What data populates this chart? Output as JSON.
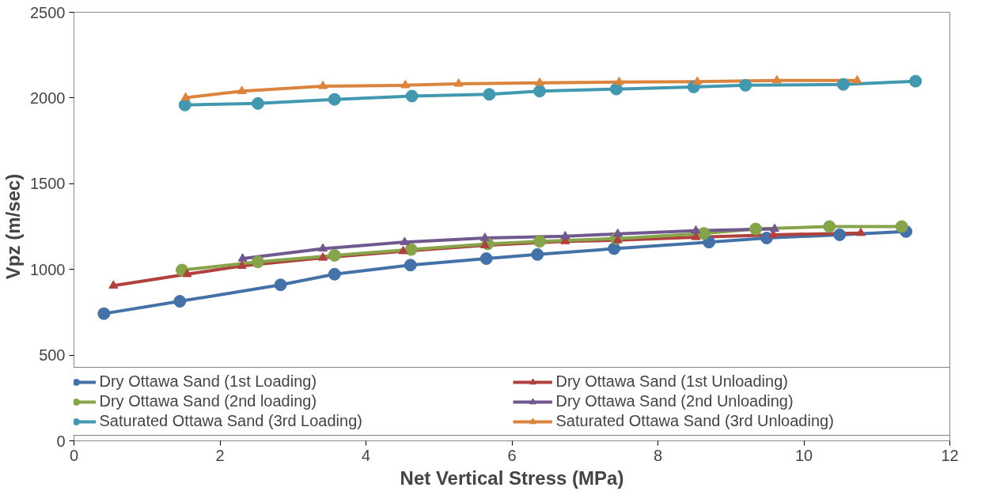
{
  "chart_data": {
    "type": "line",
    "xlabel": "Net Vertical Stress (MPa)",
    "ylabel": "Vpz (m/sec)",
    "xlim": [
      0,
      12
    ],
    "xticks": [
      0,
      2,
      4,
      6,
      8,
      10,
      12
    ],
    "ylim": [
      0,
      2500
    ],
    "yticks": [
      0,
      500,
      1000,
      1500,
      2000,
      2500
    ],
    "grid": false,
    "legend": "bottom",
    "line_style": "solid",
    "series": [
      {
        "name": "Dry Ottawa Sand (1st Loading)",
        "color": "#4472a8",
        "marker": "circle",
        "x": [
          0.41,
          1.45,
          2.83,
          3.57,
          4.61,
          5.65,
          6.35,
          7.4,
          8.7,
          9.49,
          10.49,
          11.4
        ],
        "values": [
          742,
          814,
          910,
          972,
          1025,
          1063,
          1087,
          1121,
          1159,
          1183,
          1202,
          1221
        ]
      },
      {
        "name": "Dry Ottawa Sand (1st Unloading)",
        "color": "#b0413e",
        "marker": "triangle",
        "x": [
          0.54,
          1.55,
          2.3,
          3.41,
          4.51,
          5.63,
          6.73,
          7.45,
          8.52,
          9.58,
          10.78
        ],
        "values": [
          905,
          972,
          1020,
          1068,
          1106,
          1140,
          1164,
          1170,
          1188,
          1202,
          1212
        ]
      },
      {
        "name": "Dry Ottawa Sand (2nd loading)",
        "color": "#86a44a",
        "marker": "circle",
        "x": [
          1.48,
          2.52,
          3.57,
          4.62,
          5.67,
          6.38,
          7.43,
          8.63,
          9.34,
          10.35,
          11.34
        ],
        "values": [
          996,
          1044,
          1082,
          1116,
          1149,
          1164,
          1180,
          1210,
          1236,
          1250,
          1250
        ]
      },
      {
        "name": "Dry Ottawa Sand (2nd Unloading)",
        "color": "#71588f",
        "marker": "triangle",
        "x": [
          2.31,
          3.41,
          4.53,
          5.63,
          6.73,
          7.45,
          8.52,
          9.6
        ],
        "values": [
          1063,
          1121,
          1159,
          1183,
          1193,
          1207,
          1226,
          1236
        ]
      },
      {
        "name": "Saturated Ottawa Sand (3rd Loading)",
        "color": "#4198af",
        "marker": "circle",
        "x": [
          1.52,
          2.52,
          3.57,
          4.63,
          5.69,
          6.38,
          7.43,
          8.49,
          9.2,
          10.54,
          11.53
        ],
        "values": [
          1959,
          1968,
          1992,
          2011,
          2021,
          2040,
          2052,
          2064,
          2074,
          2079,
          2098
        ]
      },
      {
        "name": "Saturated Ottawa Sand (3rd Unloading)",
        "color": "#db843d",
        "marker": "triangle",
        "x": [
          1.53,
          2.3,
          3.41,
          4.54,
          5.27,
          6.38,
          7.47,
          8.54,
          9.63,
          10.73
        ],
        "values": [
          2002,
          2040,
          2069,
          2074,
          2083,
          2088,
          2093,
          2095,
          2102,
          2102
        ]
      }
    ]
  }
}
